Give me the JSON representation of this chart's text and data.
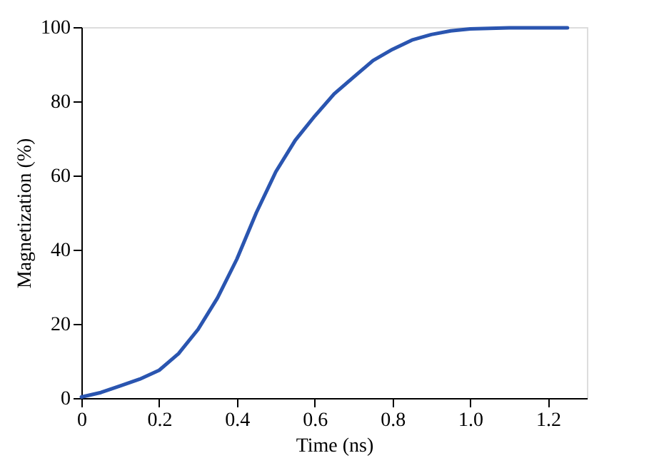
{
  "chart_data": {
    "type": "line",
    "xlabel": "Time (ns)",
    "ylabel": "Magnetization (%)",
    "x": [
      0,
      0.05,
      0.1,
      0.15,
      0.2,
      0.25,
      0.3,
      0.35,
      0.4,
      0.43,
      0.45,
      0.5,
      0.55,
      0.6,
      0.65,
      0.7,
      0.75,
      0.8,
      0.85,
      0.9,
      0.95,
      1.0,
      1.1,
      1.25
    ],
    "series": [
      {
        "color": "#2a55b0",
        "values": [
          0.3,
          1.5,
          3.3,
          5.1,
          7.5,
          12,
          18.5,
          27,
          37.5,
          45,
          50,
          61,
          69.5,
          76,
          82,
          86.5,
          91,
          94,
          96.5,
          98,
          99,
          99.5,
          99.8,
          99.8
        ]
      }
    ],
    "xlim": [
      0,
      1.3
    ],
    "xticks": [
      0,
      {
        "value": 0.2,
        "label": "0.2"
      },
      {
        "value": 0.4,
        "label": "0.4"
      },
      {
        "value": 0.6,
        "label": "0.6"
      },
      {
        "value": 0.8,
        "label": "0.8"
      },
      {
        "value": 1.0,
        "label": "1.0"
      },
      {
        "value": 1.2,
        "label": "1.2"
      }
    ],
    "ylim": [
      0,
      100
    ],
    "yticks": [
      0,
      20,
      40,
      60,
      80,
      100
    ],
    "grid": false,
    "line_style": "solid",
    "marker": "none"
  }
}
